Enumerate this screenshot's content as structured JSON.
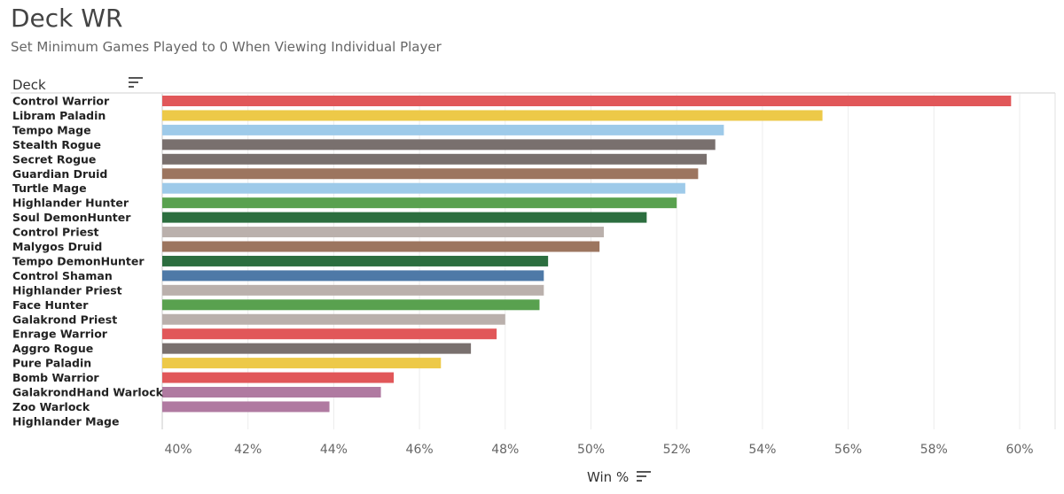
{
  "title": "Deck WR",
  "subtitle": "Set Minimum Games Played to 0 When Viewing Individual Player",
  "icons": {
    "deck_sort": "sort-descending-icon",
    "xaxis_sort": "sort-descending-icon"
  },
  "chart_data": {
    "type": "bar",
    "orientation": "horizontal",
    "title": "Deck WR",
    "ylabel": "Deck",
    "xlabel": "Win %",
    "xlim": [
      40,
      60
    ],
    "xticks": [
      40,
      42,
      44,
      46,
      48,
      50,
      52,
      54,
      56,
      58,
      60
    ],
    "xtick_labels": [
      "40%",
      "42%",
      "44%",
      "46%",
      "48%",
      "50%",
      "52%",
      "54%",
      "56%",
      "58%",
      "60%"
    ],
    "grid": true,
    "categories": [
      "Control Warrior",
      "Libram Paladin",
      "Tempo Mage",
      "Stealth Rogue",
      "Secret Rogue",
      "Guardian Druid",
      "Turtle Mage",
      "Highlander Hunter",
      "Soul DemonHunter",
      "Control Priest",
      "Malygos Druid",
      "Tempo DemonHunter",
      "Control Shaman",
      "Highlander Priest",
      "Face Hunter",
      "Galakrond Priest",
      "Enrage Warrior",
      "Aggro Rogue",
      "Pure Paladin",
      "Bomb Warrior",
      "GalakrondHand Warlock",
      "Zoo Warlock",
      "Highlander Mage"
    ],
    "values": [
      59.8,
      55.4,
      53.1,
      52.9,
      52.7,
      52.5,
      52.2,
      52.0,
      51.3,
      50.3,
      50.2,
      49.0,
      48.9,
      48.9,
      48.8,
      48.0,
      47.8,
      47.2,
      46.5,
      45.4,
      45.1,
      43.9,
      40.0
    ],
    "colors": [
      "#e15759",
      "#edc948",
      "#9ecae9",
      "#79706e",
      "#79706e",
      "#9c755f",
      "#9ecae9",
      "#59a14f",
      "#2c6e3f",
      "#bab0ac",
      "#9c755f",
      "#2c6e3f",
      "#4e79a7",
      "#bab0ac",
      "#59a14f",
      "#bab0ac",
      "#e15759",
      "#79706e",
      "#edc948",
      "#e15759",
      "#b07aa1",
      "#b07aa1",
      "#9ecae9"
    ]
  }
}
